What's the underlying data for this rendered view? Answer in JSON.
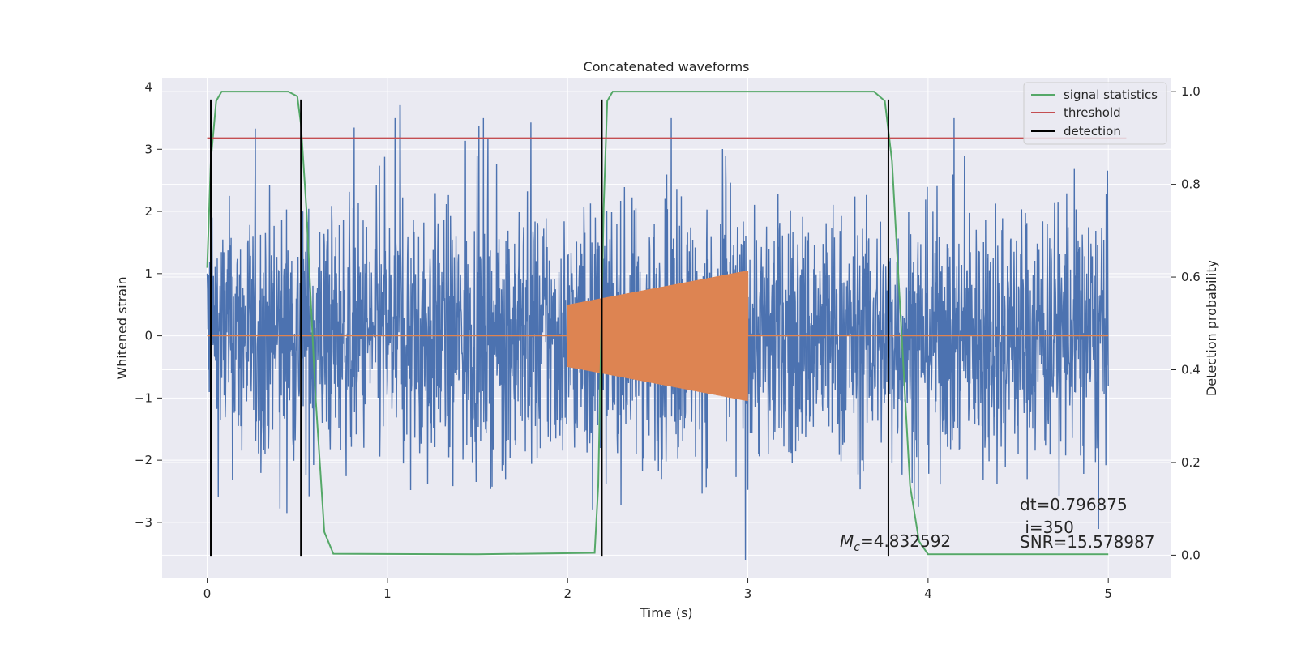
{
  "chart_data": {
    "type": "line",
    "title": "Concatenated waveforms",
    "xlabel": "Time (s)",
    "ylabel": "Whitened strain",
    "y2label": "Detection probability",
    "xlim": [
      -0.25,
      5.35
    ],
    "ylim": [
      -3.9,
      4.15
    ],
    "y2lim": [
      -0.05,
      1.03
    ],
    "x_ticks": [
      0,
      1,
      2,
      3,
      4,
      5
    ],
    "y_ticks": [
      -3,
      -2,
      -1,
      0,
      1,
      2,
      3,
      4
    ],
    "y2_ticks": [
      0.0,
      0.2,
      0.4,
      0.6,
      0.8,
      1.0
    ],
    "grid": true,
    "legend_position": "top-right",
    "colors": {
      "strain": "#4c72b0",
      "injection": "#dd8452",
      "signal_statistics": "#55a868",
      "threshold": "#c44e52",
      "detection": "#000000",
      "background": "#eaeaf2",
      "grid": "#ffffff"
    },
    "series": [
      {
        "name": "signal statistics",
        "axis": "right",
        "x": [
          0,
          0.02,
          0.05,
          0.08,
          0.45,
          0.5,
          0.52,
          0.55,
          0.6,
          0.65,
          0.7,
          1.5,
          2.15,
          2.17,
          2.2,
          2.22,
          2.25,
          2.3,
          3.7,
          3.76,
          3.8,
          3.85,
          3.9,
          3.95,
          4.0,
          5.0
        ],
        "values": [
          0.62,
          0.85,
          0.98,
          1.0,
          1.0,
          0.99,
          0.93,
          0.75,
          0.35,
          0.05,
          0.003,
          0.002,
          0.005,
          0.15,
          0.75,
          0.98,
          1.0,
          1.0,
          1.0,
          0.98,
          0.85,
          0.5,
          0.15,
          0.03,
          0.002,
          0.002
        ]
      },
      {
        "name": "threshold",
        "axis": "right",
        "x": [
          0,
          5.1
        ],
        "values": [
          0.9,
          0.9
        ]
      },
      {
        "name": "detection",
        "axis": "left",
        "x": [
          0.02,
          0.52,
          2.19,
          3.78
        ],
        "y_range": [
          -3.55,
          3.8
        ]
      }
    ],
    "strain": {
      "x_range": [
        0,
        5
      ],
      "envelope": [
        -3.6,
        3.7
      ],
      "peak": [
        1.07,
        3.7
      ]
    },
    "injection": {
      "x_range": [
        2,
        3
      ],
      "amplitude_start": 0.5,
      "amplitude_end": 1.05
    },
    "legend": [
      "signal statistics",
      "threshold",
      "detection"
    ],
    "annotations": {
      "mc": "=4.832592",
      "dt": "dt=0.796875",
      "i": " i=350",
      "snr": "SNR=15.578987"
    }
  }
}
